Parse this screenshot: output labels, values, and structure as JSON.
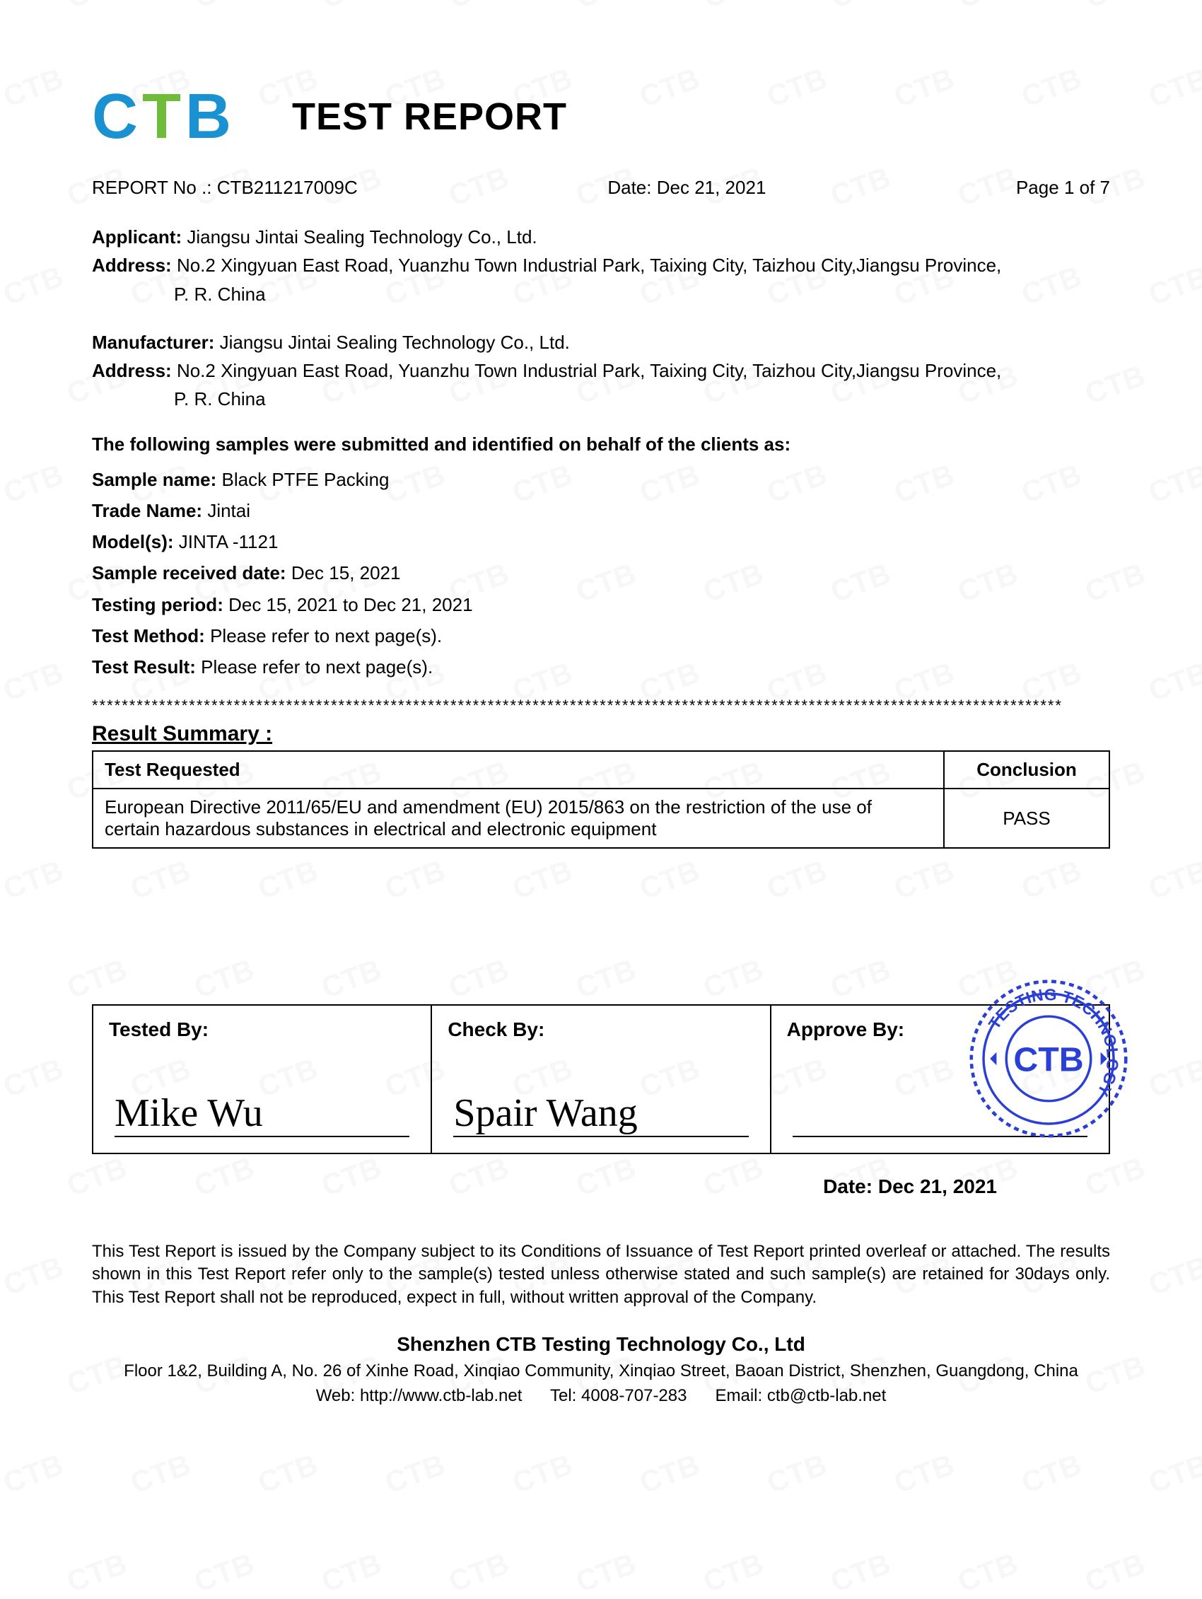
{
  "logo": {
    "c": "C",
    "t": "T",
    "b": "B",
    "c_color": "#1a91d1",
    "t_color": "#6fbb3a",
    "b_color": "#1a91d1"
  },
  "title": "TEST REPORT",
  "meta": {
    "report_no_label": "REPORT No .:",
    "report_no": "CTB211217009C",
    "date_label": "Date:",
    "date": "Dec 21, 2021",
    "page_label": "Page",
    "page": "1 of 7"
  },
  "applicant": {
    "label": "Applicant:",
    "value": "Jiangsu Jintai Sealing Technology Co., Ltd.",
    "addr_label": "Address:",
    "addr_line1": "No.2 Xingyuan East Road, Yuanzhu Town Industrial Park, Taixing City, Taizhou City,Jiangsu Province,",
    "addr_line2": "P. R. China"
  },
  "manufacturer": {
    "label": "Manufacturer:",
    "value": "Jiangsu Jintai Sealing Technology Co., Ltd.",
    "addr_label": "Address:",
    "addr_line1": "No.2 Xingyuan East Road, Yuanzhu Town Industrial Park, Taixing City, Taizhou City,Jiangsu Province,",
    "addr_line2": "P. R. China"
  },
  "samples_intro": "The following samples were submitted and identified on behalf of the clients as:",
  "kv": {
    "sample_name_k": "Sample name:",
    "sample_name_v": "Black PTFE Packing",
    "trade_name_k": "Trade Name:",
    "trade_name_v": "Jintai",
    "models_k": "Model(s):",
    "models_v": "JINTA -1121",
    "recv_k": "Sample received date:",
    "recv_v": "Dec 15, 2021",
    "period_k": "Testing period:",
    "period_v": "Dec 15, 2021 to Dec 21, 2021",
    "method_k": "Test Method:",
    "method_v": "Please refer to next page(s).",
    "result_k": "Test Result:",
    "result_v": "Please refer to next page(s)."
  },
  "separator": "**********************************************************************************************************************************",
  "result_summary_heading": "Result Summary :",
  "summary_table": {
    "columns": [
      "Test Requested",
      "Conclusion"
    ],
    "rows": [
      [
        "European Directive 2011/65/EU and amendment (EU) 2015/863 on the restriction of the use of certain hazardous substances in electrical and electronic equipment",
        "PASS"
      ]
    ]
  },
  "signatures": {
    "tested_label": "Tested By:",
    "tested_sig": "Mike Wu",
    "check_label": "Check By:",
    "check_sig": "Spair Wang",
    "approve_label": "Approve By:",
    "approve_sig": "",
    "approve_date_label": "Date:",
    "approve_date": "Dec 21, 2021",
    "stamp_text_outer": "TESTING TECHNOLOGY",
    "stamp_text_inner": "CTB",
    "stamp_color": "#2a3fd6"
  },
  "disclaimer": "This Test Report is issued by the Company subject to its Conditions of Issuance of Test Report printed overleaf or attached. The results shown in this Test Report refer only to the sample(s) tested unless otherwise stated and such sample(s) are retained for 30days only. This Test Report shall not be reproduced, expect in full, without written approval of the Company.",
  "footer": {
    "company": "Shenzhen CTB Testing Technology Co., Ltd",
    "addr": "Floor 1&2, Building A, No. 26 of Xinhe Road, Xinqiao Community, Xinqiao Street, Baoan District, Shenzhen, Guangdong, China",
    "web_label": "Web:",
    "web": "http://www.ctb-lab.net",
    "tel_label": "Tel:",
    "tel": "4008-707-283",
    "email_label": "Email:",
    "email": "ctb@ctb-lab.net"
  },
  "watermark_text": "CTB"
}
